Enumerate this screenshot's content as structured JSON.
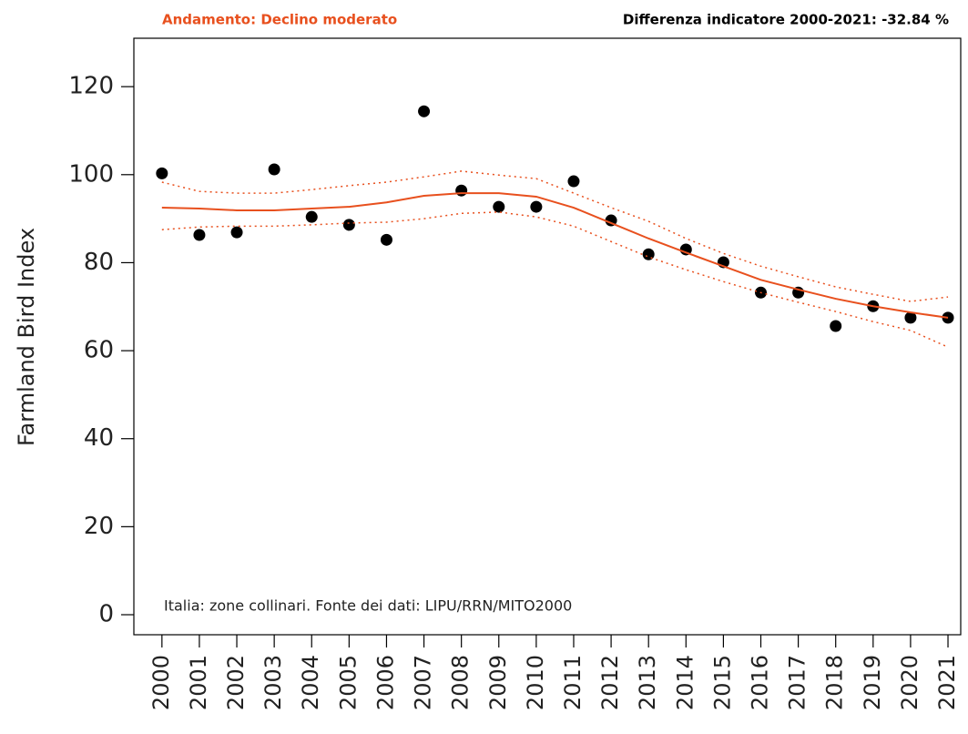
{
  "chart_data": {
    "type": "scatter",
    "title": "Andamento:  Declino moderato",
    "subtitle": "Differenza indicatore 2000-2021: -32.84 %",
    "y_label": "Farmland Bird Index",
    "annotation": "Italia: zone collinari. Fonte dei dati: LIPU/RRN/MITO2000",
    "x": [
      2000,
      2001,
      2002,
      2003,
      2004,
      2005,
      2006,
      2007,
      2008,
      2009,
      2010,
      2011,
      2012,
      2013,
      2014,
      2015,
      2016,
      2017,
      2018,
      2019,
      2020,
      2021
    ],
    "xlim": [
      1999.25,
      2021.34
    ],
    "xticks": [
      2000,
      2001,
      2002,
      2003,
      2004,
      2005,
      2006,
      2007,
      2008,
      2009,
      2010,
      2011,
      2012,
      2013,
      2014,
      2015,
      2016,
      2017,
      2018,
      2019,
      2020,
      2021
    ],
    "ylim": [
      -4.55,
      131
    ],
    "yticks": [
      0,
      20,
      40,
      60,
      80,
      100,
      120
    ],
    "series": [
      {
        "style": "points",
        "color": "#000000",
        "values": [
          100.3,
          86.3,
          86.9,
          101.2,
          90.4,
          88.6,
          85.2,
          114.4,
          96.4,
          92.7,
          92.7,
          98.5,
          89.6,
          81.9,
          83.0,
          80.1,
          73.2,
          73.2,
          65.6,
          70.1,
          67.5,
          67.5
        ]
      },
      {
        "style": "solid",
        "color": "#e8501e",
        "values": [
          92.5,
          92.3,
          91.9,
          91.9,
          92.3,
          92.7,
          93.7,
          95.2,
          95.8,
          95.8,
          95.0,
          92.5,
          89.0,
          85.5,
          82.3,
          79.2,
          76.1,
          73.9,
          71.8,
          70.1,
          68.7,
          67.5
        ]
      },
      {
        "style": "dotted",
        "color": "#e8501e",
        "values": [
          98.3,
          96.2,
          95.8,
          95.8,
          96.6,
          97.5,
          98.3,
          99.5,
          100.8,
          99.9,
          99.1,
          95.8,
          92.5,
          89.4,
          85.5,
          82.1,
          79.2,
          76.8,
          74.5,
          72.8,
          71.2,
          72.2
        ]
      },
      {
        "style": "dotted",
        "color": "#e8501e",
        "values": [
          87.5,
          88.1,
          88.3,
          88.3,
          88.6,
          89.0,
          89.2,
          90.0,
          91.2,
          91.5,
          90.4,
          88.3,
          84.8,
          81.3,
          78.4,
          75.7,
          73.2,
          71.0,
          68.9,
          66.6,
          64.6,
          60.8
        ]
      }
    ]
  }
}
